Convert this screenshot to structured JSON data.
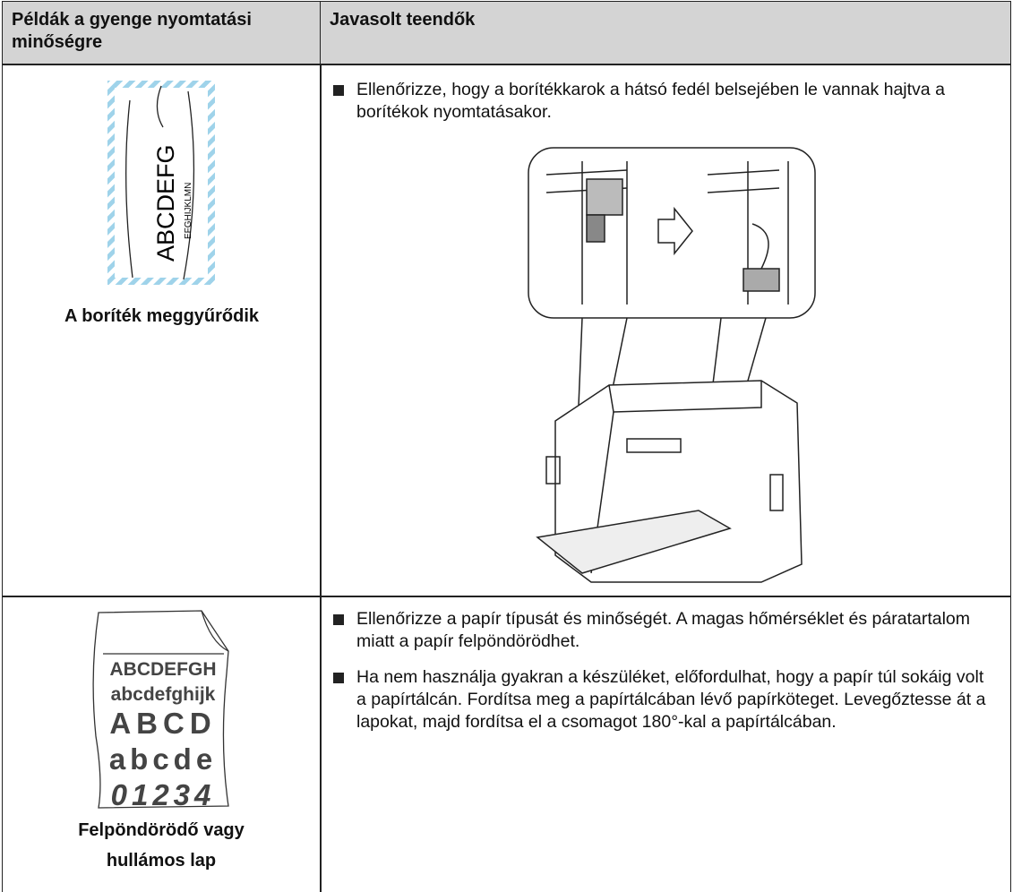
{
  "table": {
    "header": [
      "Példák a gyenge nyomtatási minőségre",
      "Javasolt teendők"
    ],
    "rows": [
      {
        "example": {
          "image_text": [
            "ABCDEFG",
            "EFGHIJKLMN"
          ],
          "caption": "A boríték meggyűrődik"
        },
        "actions": [
          "Ellenőrizze, hogy a borítékkarok a hátsó fedél belsejében le vannak hajtva a borítékok nyomtatásakor."
        ]
      },
      {
        "example": {
          "image_text": [
            "ABCDEFGH",
            "abcdefghijk",
            "ABCD",
            "abcde",
            "01234"
          ],
          "caption": "Felpöndörödő vagy hullámos lap"
        },
        "actions": [
          "Ellenőrizze a papír típusát és minőségét. A magas hőmérséklet és páratartalom miatt a papír felpöndörödhet.",
          "Ha nem használja gyakran a készüléket, előfordulhat, hogy a papír túl sokáig volt a papírtálcán. Fordítsa meg a papírtálcában lévő papírköteget. Levegőztesse át a lapokat, majd fordítsa el a csomagot 180°-kal a papírtálcában."
        ]
      }
    ]
  }
}
